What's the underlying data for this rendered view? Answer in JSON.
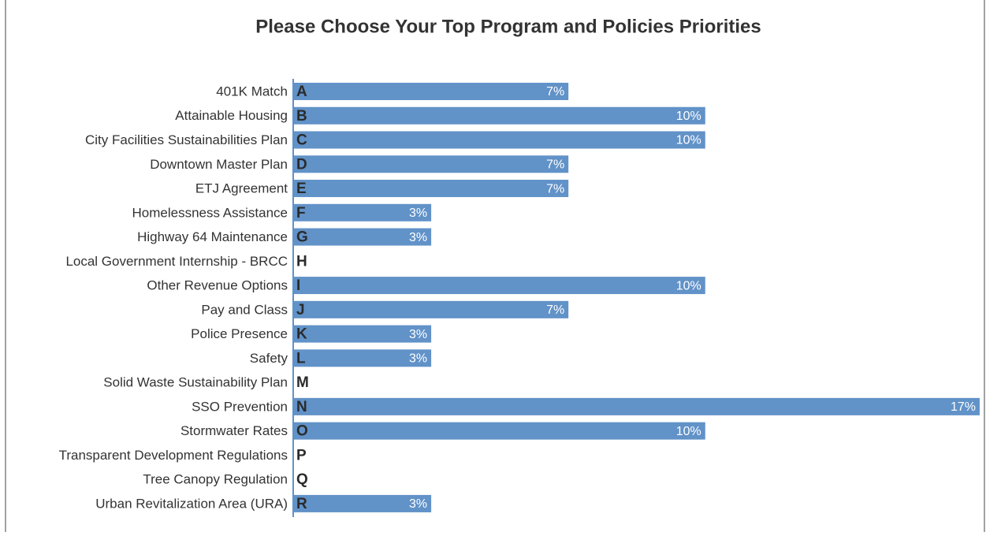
{
  "chart_data": {
    "type": "barh",
    "title": "Please Choose Your Top Program and Policies Priorities",
    "categories": [
      "401K Match",
      "Attainable Housing",
      "City Facilities Sustainabilities Plan",
      "Downtown Master Plan",
      "ETJ Agreement",
      "Homelessness Assistance",
      "Highway 64 Maintenance",
      "Local Government Internship - BRCC",
      "Other Revenue Options",
      "Pay and Class",
      "Police Presence",
      "Safety",
      "Solid Waste Sustainability Plan",
      "SSO Prevention",
      "Stormwater Rates",
      "Transparent Development Regulations",
      "Tree Canopy Regulation",
      "Urban Revitalization Area (URA)"
    ],
    "letters": [
      "A",
      "B",
      "C",
      "D",
      "E",
      "F",
      "G",
      "H",
      "I",
      "J",
      "K",
      "L",
      "M",
      "N",
      "O",
      "P",
      "Q",
      "R"
    ],
    "values": [
      6.9,
      10.34,
      10.34,
      6.9,
      6.9,
      3.45,
      3.45,
      0,
      10.34,
      6.9,
      3.45,
      3.45,
      0,
      17.24,
      10.34,
      0,
      0,
      3.45
    ],
    "value_labels": [
      "7%",
      "10%",
      "10%",
      "7%",
      "7%",
      "3%",
      "3%",
      null,
      "10%",
      "7%",
      "3%",
      "3%",
      null,
      "17%",
      "10%",
      null,
      null,
      "3%"
    ],
    "color": "#6192c8",
    "xlim": [
      0,
      17.3
    ]
  }
}
